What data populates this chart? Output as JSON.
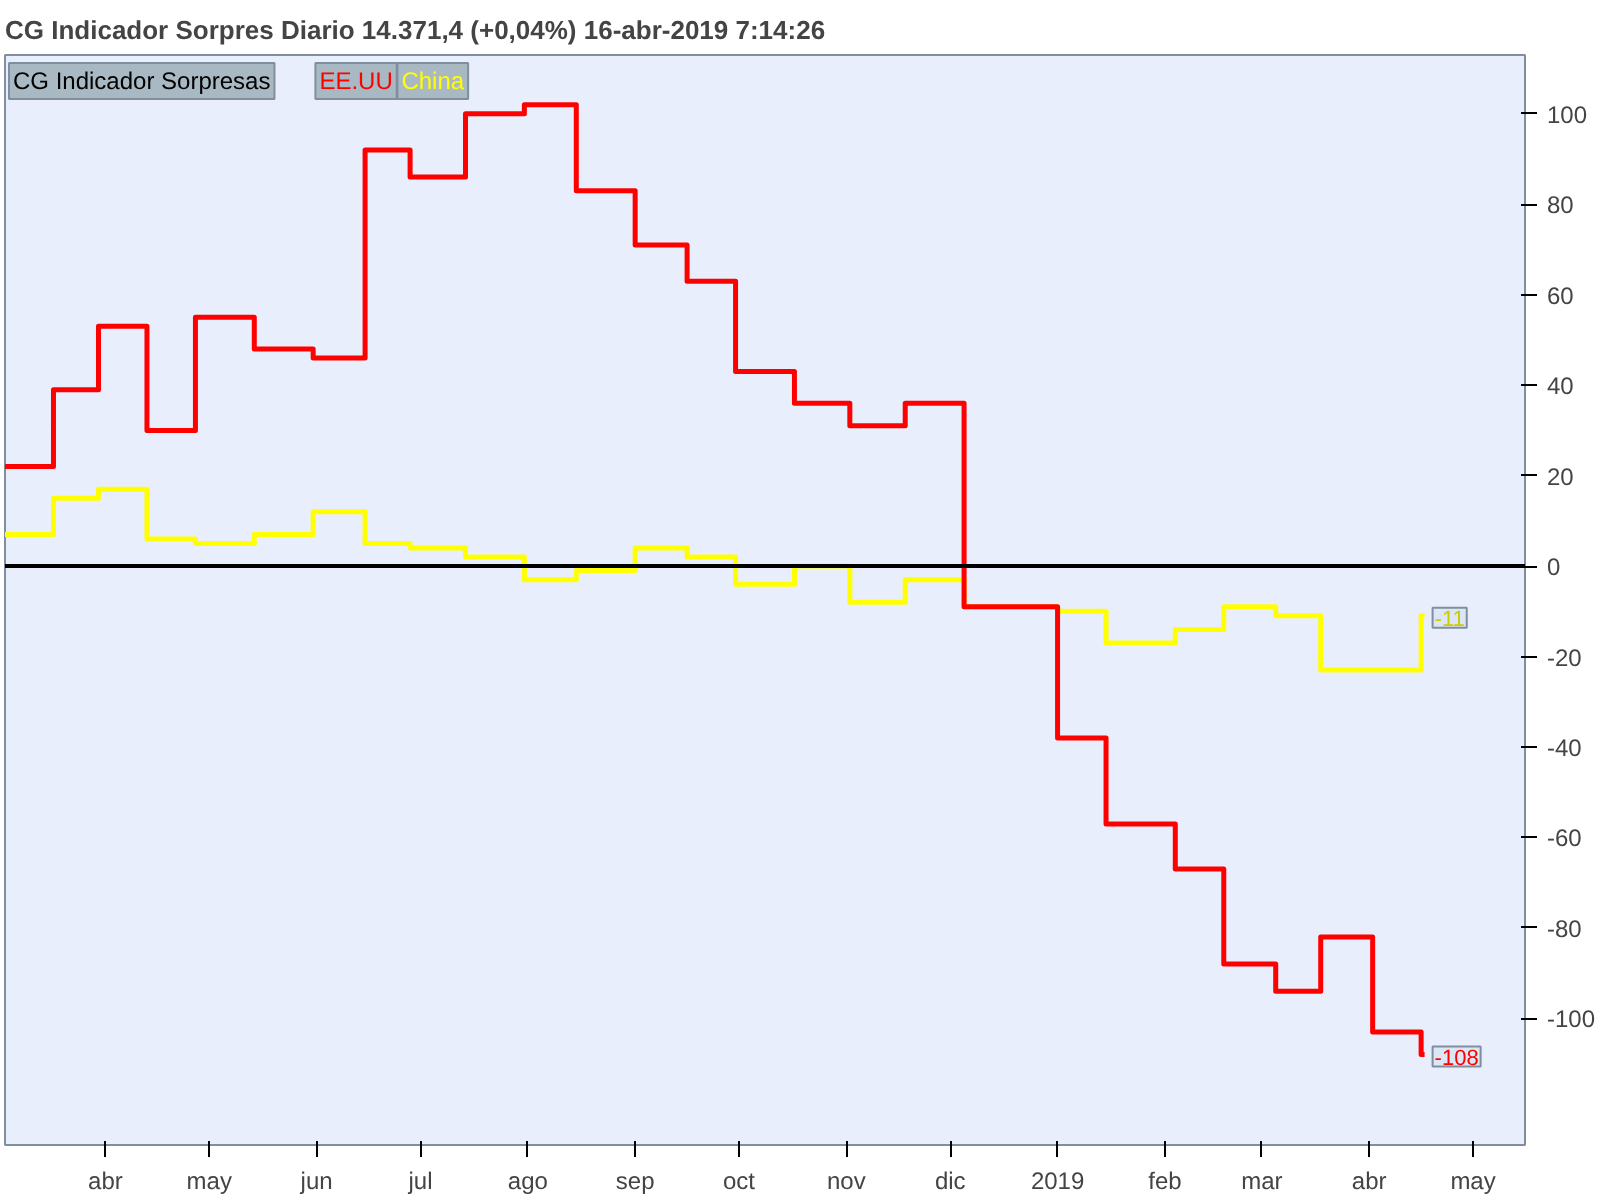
{
  "chart_data": {
    "type": "step",
    "title": "CG Indicador Sorpres   Diario   14.371,4 (+0,04%)   16-abr-2019 7:14:26",
    "legend_title": "CG Indicador Sorpresas",
    "legend": "top left",
    "grid": false,
    "x": [
      "2018-03-03",
      "2018-03-17",
      "2018-03-30",
      "2018-04-13",
      "2018-04-27",
      "2018-05-14",
      "2018-05-31",
      "2018-06-15",
      "2018-06-28",
      "2018-07-14",
      "2018-07-31",
      "2018-08-15",
      "2018-09-01",
      "2018-09-16",
      "2018-09-30",
      "2018-10-17",
      "2018-11-02",
      "2018-11-18",
      "2018-12-05",
      "2019-01-01",
      "2019-01-15",
      "2019-02-04",
      "2019-02-18",
      "2019-03-05",
      "2019-03-18",
      "2019-04-02",
      "2019-04-16",
      "2019-04-17"
    ],
    "series": [
      {
        "name": "EE.UU",
        "color": "#ff0000",
        "values": [
          22,
          39,
          53,
          30,
          55,
          48,
          46,
          92,
          86,
          100,
          102,
          83,
          71,
          63,
          43,
          36,
          31,
          36,
          -9,
          -38,
          -57,
          -67,
          -88,
          -94,
          -82,
          -103,
          -108,
          -108
        ]
      },
      {
        "name": "China",
        "color": "#ffff00",
        "values": [
          7,
          15,
          17,
          6,
          5,
          7,
          12,
          5,
          4,
          2,
          -3,
          -1,
          4,
          2,
          -4,
          0,
          -8,
          -3,
          -9,
          -10,
          -17,
          -14,
          -9,
          -11,
          -23,
          -23,
          -11,
          -11
        ]
      }
    ],
    "xlim": [
      "2018-03-03",
      "2019-05-16"
    ],
    "xticks": [
      {
        "value": "2018-04-01",
        "label": "abr"
      },
      {
        "value": "2018-05-01",
        "label": "may"
      },
      {
        "value": "2018-06-01",
        "label": "jun"
      },
      {
        "value": "2018-07-01",
        "label": "jul"
      },
      {
        "value": "2018-08-01",
        "label": "ago"
      },
      {
        "value": "2018-09-01",
        "label": "sep"
      },
      {
        "value": "2018-10-01",
        "label": "oct"
      },
      {
        "value": "2018-11-01",
        "label": "nov"
      },
      {
        "value": "2018-12-01",
        "label": "dic"
      },
      {
        "value": "2019-01-01",
        "label": "2019"
      },
      {
        "value": "2019-02-01",
        "label": "feb"
      },
      {
        "value": "2019-03-01",
        "label": "mar"
      },
      {
        "value": "2019-04-01",
        "label": "abr"
      },
      {
        "value": "2019-05-01",
        "label": "may"
      }
    ],
    "ylim": [
      -128,
      113
    ],
    "yticks": [
      -100,
      -80,
      -60,
      -40,
      -20,
      0,
      20,
      40,
      60,
      80,
      100
    ],
    "ref_lines": [
      {
        "axis": "y",
        "value": 0,
        "color": "#000000"
      }
    ],
    "annotations": [
      {
        "text": "-11",
        "x": "2019-04-17",
        "y": -11
      },
      {
        "text": "-108",
        "x": "2019-04-17",
        "y": -108
      }
    ]
  }
}
